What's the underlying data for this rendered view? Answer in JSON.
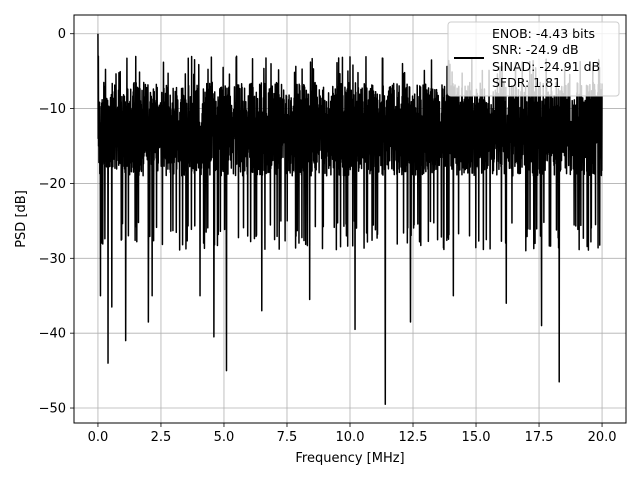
{
  "chart_data": {
    "type": "line",
    "title": "",
    "xlabel": "Frequency [MHz]",
    "ylabel": "PSD [dB]",
    "xlim": [
      -0.95,
      20.95
    ],
    "ylim": [
      -52,
      2.5
    ],
    "xticks": [
      0.0,
      2.5,
      5.0,
      7.5,
      10.0,
      12.5,
      15.0,
      17.5,
      20.0
    ],
    "xtick_labels": [
      "0.0",
      "2.5",
      "5.0",
      "7.5",
      "10.0",
      "12.5",
      "15.0",
      "17.5",
      "20.0"
    ],
    "yticks": [
      0,
      -10,
      -20,
      -30,
      -40,
      -50
    ],
    "ytick_labels": [
      "0",
      "−10",
      "−20",
      "−30",
      "−40",
      "−50"
    ],
    "grid": true,
    "legend_placement": "top-right",
    "series": [
      {
        "color": "#000000",
        "legend_lines": [
          "ENOB: -4.43 bits",
          "SNR: -24.9 dB",
          "SINAD: -24.91 dB",
          "SFDR: 1.81"
        ],
        "x_range": [
          0,
          20
        ],
        "peak": {
          "x": 0.0,
          "y": 0.0
        },
        "upper_envelope_db": -6.5,
        "lower_envelope_db": -25,
        "deep_nulls": [
          {
            "x": 0.1,
            "y": -35
          },
          {
            "x": 0.4,
            "y": -44
          },
          {
            "x": 0.55,
            "y": -36.5
          },
          {
            "x": 1.1,
            "y": -41
          },
          {
            "x": 2.0,
            "y": -38.5
          },
          {
            "x": 2.15,
            "y": -35
          },
          {
            "x": 4.05,
            "y": -35
          },
          {
            "x": 4.6,
            "y": -40.5
          },
          {
            "x": 5.1,
            "y": -45
          },
          {
            "x": 6.5,
            "y": -37
          },
          {
            "x": 8.4,
            "y": -35.5
          },
          {
            "x": 10.2,
            "y": -39.5
          },
          {
            "x": 11.4,
            "y": -49.5
          },
          {
            "x": 12.4,
            "y": -38.5
          },
          {
            "x": 14.1,
            "y": -35
          },
          {
            "x": 16.2,
            "y": -36
          },
          {
            "x": 17.6,
            "y": -39
          },
          {
            "x": 18.3,
            "y": -46.5
          }
        ]
      }
    ]
  }
}
